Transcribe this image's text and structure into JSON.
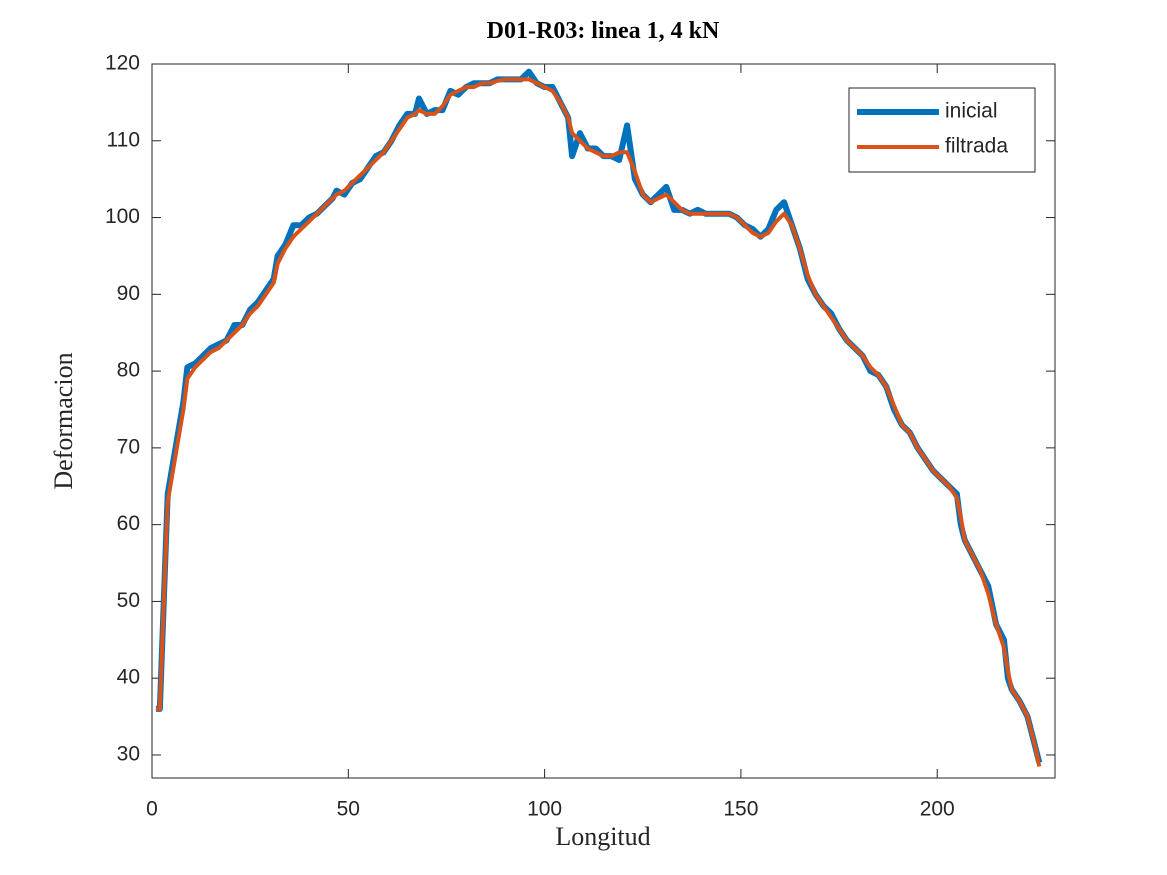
{
  "chart_data": {
    "type": "line",
    "title": "D01-R03: linea 1, 4 kN",
    "xlabel": "Longitud",
    "ylabel": "Deformacion",
    "x": [
      1,
      2,
      3,
      4,
      6,
      8,
      9,
      11,
      13,
      15,
      17,
      19,
      21,
      23,
      25,
      27,
      29,
      31,
      32,
      34,
      36,
      38,
      40,
      42,
      44,
      46,
      47,
      49,
      51,
      53,
      55,
      57,
      59,
      61,
      63,
      65,
      67,
      68,
      70,
      72,
      74,
      76,
      78,
      80,
      82,
      84,
      86,
      88,
      90,
      92,
      94,
      96,
      98,
      100,
      102,
      104,
      106,
      107,
      109,
      111,
      113,
      115,
      117,
      119,
      121,
      123,
      125,
      127,
      129,
      131,
      133,
      135,
      137,
      139,
      141,
      143,
      145,
      147,
      149,
      151,
      153,
      155,
      157,
      159,
      161,
      163,
      165,
      167,
      169,
      171,
      173,
      175,
      177,
      179,
      181,
      183,
      185,
      187,
      189,
      191,
      193,
      195,
      197,
      199,
      201,
      203,
      205,
      206,
      207,
      209,
      211,
      213,
      215,
      217,
      218,
      219,
      221,
      223,
      225,
      226
    ],
    "series": [
      {
        "name": "inicial",
        "color": "#0072BD",
        "values": [
          36,
          36,
          50,
          64,
          70,
          76,
          80.5,
          81,
          82,
          83,
          83.5,
          84,
          86,
          86,
          88,
          89,
          90.5,
          92,
          95,
          96.5,
          99,
          99,
          100,
          100.5,
          101.5,
          102.5,
          103.5,
          103,
          104.5,
          105,
          106.5,
          108,
          108.5,
          110,
          112,
          113.5,
          113.5,
          115.5,
          113.5,
          114,
          114,
          116.5,
          116,
          117,
          117.5,
          117.5,
          117.5,
          118,
          118,
          118,
          118,
          119,
          117.5,
          117,
          117,
          115,
          113,
          108,
          111,
          109,
          109,
          108,
          108,
          107.5,
          112,
          105,
          103,
          102,
          103,
          104,
          101,
          101,
          100.5,
          101,
          100.5,
          100.5,
          100.5,
          100.5,
          100,
          99,
          98.5,
          97.5,
          98.5,
          101,
          102,
          99,
          96,
          92,
          90,
          88.5,
          87.5,
          85.5,
          84,
          83,
          82,
          80,
          79.5,
          78,
          75,
          73,
          72,
          70,
          68.5,
          67,
          66,
          65,
          64,
          60,
          58,
          56,
          54,
          52,
          47,
          45,
          40,
          38.5,
          37,
          35,
          31,
          29
        ]
      },
      {
        "name": "filtrada",
        "color": "#D95319",
        "values": [
          36,
          36,
          50,
          63,
          69,
          75,
          79,
          80.5,
          81.5,
          82.5,
          83,
          84,
          85,
          86,
          87.5,
          88.5,
          90,
          91.5,
          94,
          96,
          97.5,
          98.5,
          99.5,
          100.5,
          101.5,
          102.5,
          103,
          103.5,
          104.5,
          105.5,
          106.5,
          107.5,
          108.5,
          110,
          111.5,
          113,
          113.5,
          114,
          113.5,
          113.5,
          114.5,
          116,
          116.5,
          117,
          117,
          117.5,
          117.5,
          117.8,
          118,
          118,
          118,
          118,
          117.5,
          117,
          116.5,
          115,
          113,
          111,
          110,
          109,
          108.5,
          108,
          108,
          108.5,
          108.5,
          106,
          103,
          102,
          102.5,
          103,
          102,
          101,
          100.5,
          100.5,
          100.5,
          100.5,
          100.5,
          100.5,
          100,
          99,
          98,
          97.5,
          98,
          99.5,
          100.5,
          99,
          96,
          92.5,
          90,
          88.5,
          87,
          85.5,
          84,
          83,
          82,
          80.5,
          79.5,
          78,
          75.5,
          73,
          72,
          70,
          68.5,
          67,
          66,
          65,
          63.5,
          61,
          58,
          56,
          54,
          51,
          47,
          44,
          41,
          38.5,
          37,
          35,
          31,
          28.5
        ]
      }
    ],
    "xlim": [
      0,
      230
    ],
    "ylim": [
      27,
      120
    ],
    "xticks": [
      0,
      50,
      100,
      150,
      200
    ],
    "yticks": [
      30,
      40,
      50,
      60,
      70,
      80,
      90,
      100,
      110,
      120
    ],
    "legend": "northeast"
  }
}
